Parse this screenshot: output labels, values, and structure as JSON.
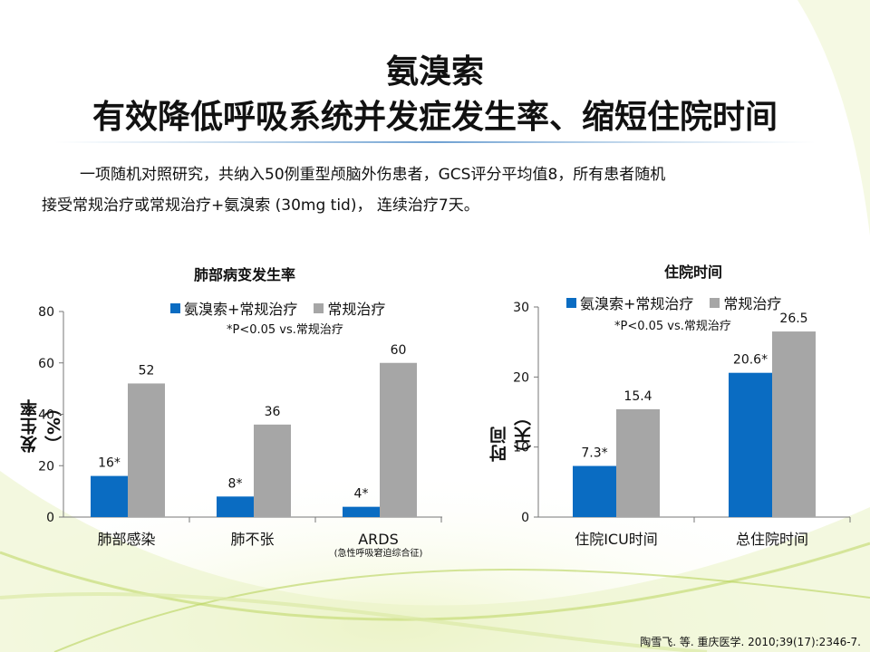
{
  "title_line1": "氨溴索",
  "title_line2": "有效降低呼吸系统并发症发生率、缩短住院时间",
  "intro_line1": "一项随机对照研究，共纳入50例重型颅脑外伤患者，GCS评分平均值8，所有患者随机",
  "intro_line2": "接受常规治疗或常规治疗+氨溴索 (30mg tid)， 连续治疗7天。",
  "citation": "陶雪飞. 等. 重庆医学. 2010;39(17):2346-7.",
  "colors": {
    "treatment": "#0a6cc2",
    "control": "#a6a6a6",
    "accent_green": "#9cc23a"
  },
  "chart_data": [
    {
      "type": "bar",
      "title": "肺部病变发生率",
      "ylabel": "发生率（%）",
      "note": "*P<0.05 vs.常规治疗",
      "ylim": [
        0,
        80
      ],
      "yticks": [
        "0",
        "20",
        "40",
        "60",
        "80"
      ],
      "categories": [
        "肺部感染",
        "肺不张",
        "ARDS"
      ],
      "category_sublabels": [
        "",
        "",
        "(急性呼吸窘迫综合征)"
      ],
      "series": [
        {
          "name": "氨溴索+常规治疗",
          "values": [
            16,
            8,
            4
          ],
          "labels": [
            "16*",
            "8*",
            "4*"
          ]
        },
        {
          "name": "常规治疗",
          "values": [
            52,
            36,
            60
          ],
          "labels": [
            "52",
            "36",
            "60"
          ]
        }
      ],
      "legend": "top"
    },
    {
      "type": "bar",
      "title": "住院时间",
      "ylabel": "时间（天）",
      "note": "*P<0.05 vs.常规治疗",
      "ylim": [
        0,
        30
      ],
      "yticks": [
        "0",
        "10",
        "20",
        "30"
      ],
      "categories": [
        "住院ICU时间",
        "总住院时间"
      ],
      "series": [
        {
          "name": "氨溴索+常规治疗",
          "values": [
            7.3,
            20.6
          ],
          "labels": [
            "7.3*",
            "20.6*"
          ]
        },
        {
          "name": "常规治疗",
          "values": [
            15.4,
            26.5
          ],
          "labels": [
            "15.4",
            "26.5"
          ]
        }
      ],
      "legend": "top"
    }
  ]
}
